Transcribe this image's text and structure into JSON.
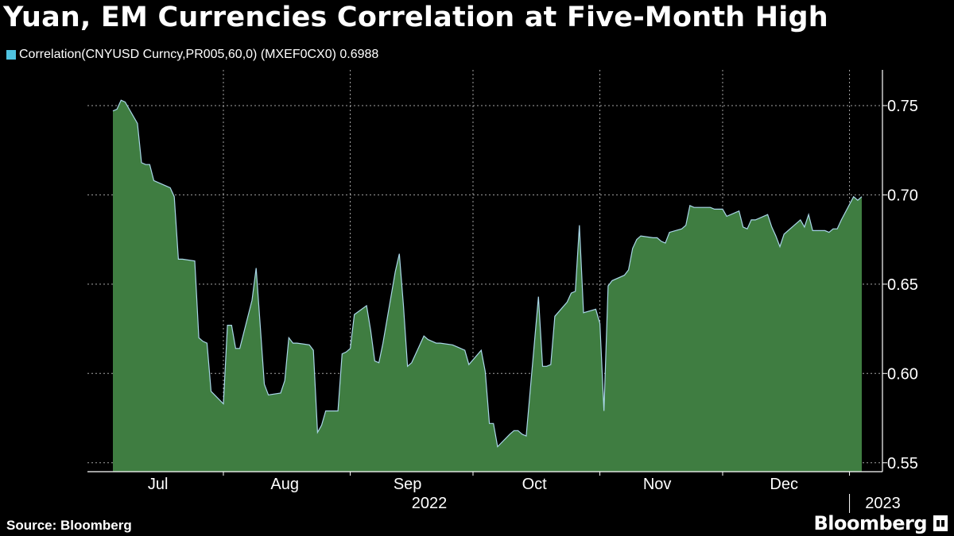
{
  "title": "Yuan, EM Currencies Correlation at Five-Month High",
  "legend": {
    "label": "Correlation(CNYUSD Curncy,PR005,60,0) (MXEF0CX0) 0.6988",
    "color": "#4fc3e0"
  },
  "source": "Source: Bloomberg",
  "brand": "Bloomberg",
  "colors": {
    "area_fill": "#3f7d41",
    "line": "#a9d6e8",
    "grid": "#cccccc",
    "axis": "#ffffff"
  },
  "chart_data": {
    "type": "area",
    "title": "Yuan, EM Currencies Correlation at Five-Month High",
    "xlabel": "",
    "ylabel": "",
    "ylim": [
      0.545,
      0.77
    ],
    "yticks": [
      "0.55",
      "0.60",
      "0.65",
      "0.70",
      "0.75"
    ],
    "xticks": [
      "Jul",
      "Aug",
      "Sep",
      "Oct",
      "Nov",
      "Dec"
    ],
    "year_labels": [
      "2022",
      "2023"
    ],
    "grid": true,
    "legend_position": "top-left",
    "series": [
      {
        "name": "Correlation(CNYUSD Curncy,PR005,60,0) (MXEF0CX0)",
        "x": [
          "2022-07-05",
          "2022-07-06",
          "2022-07-07",
          "2022-07-08",
          "2022-07-11",
          "2022-07-12",
          "2022-07-13",
          "2022-07-14",
          "2022-07-15",
          "2022-07-18",
          "2022-07-19",
          "2022-07-20",
          "2022-07-21",
          "2022-07-22",
          "2022-07-25",
          "2022-07-26",
          "2022-07-27",
          "2022-07-28",
          "2022-07-29",
          "2022-08-01",
          "2022-08-02",
          "2022-08-03",
          "2022-08-04",
          "2022-08-05",
          "2022-08-08",
          "2022-08-09",
          "2022-08-10",
          "2022-08-11",
          "2022-08-12",
          "2022-08-15",
          "2022-08-16",
          "2022-08-17",
          "2022-08-18",
          "2022-08-19",
          "2022-08-22",
          "2022-08-23",
          "2022-08-24",
          "2022-08-25",
          "2022-08-26",
          "2022-08-29",
          "2022-08-30",
          "2022-08-31",
          "2022-09-01",
          "2022-09-02",
          "2022-09-05",
          "2022-09-06",
          "2022-09-07",
          "2022-09-08",
          "2022-09-09",
          "2022-09-12",
          "2022-09-13",
          "2022-09-14",
          "2022-09-15",
          "2022-09-16",
          "2022-09-19",
          "2022-09-20",
          "2022-09-21",
          "2022-09-22",
          "2022-09-23",
          "2022-09-26",
          "2022-09-27",
          "2022-09-28",
          "2022-09-29",
          "2022-09-30",
          "2022-10-03",
          "2022-10-04",
          "2022-10-05",
          "2022-10-06",
          "2022-10-07",
          "2022-10-10",
          "2022-10-11",
          "2022-10-12",
          "2022-10-13",
          "2022-10-14",
          "2022-10-17",
          "2022-10-18",
          "2022-10-19",
          "2022-10-20",
          "2022-10-21",
          "2022-10-24",
          "2022-10-25",
          "2022-10-26",
          "2022-10-27",
          "2022-10-28",
          "2022-10-31",
          "2022-11-01",
          "2022-11-02",
          "2022-11-03",
          "2022-11-04",
          "2022-11-07",
          "2022-11-08",
          "2022-11-09",
          "2022-11-10",
          "2022-11-11",
          "2022-11-14",
          "2022-11-15",
          "2022-11-16",
          "2022-11-17",
          "2022-11-18",
          "2022-11-21",
          "2022-11-22",
          "2022-11-23",
          "2022-11-24",
          "2022-11-25",
          "2022-11-28",
          "2022-11-29",
          "2022-11-30",
          "2022-12-01",
          "2022-12-02",
          "2022-12-05",
          "2022-12-06",
          "2022-12-07",
          "2022-12-08",
          "2022-12-09",
          "2022-12-12",
          "2022-12-13",
          "2022-12-14",
          "2022-12-15",
          "2022-12-16",
          "2022-12-19",
          "2022-12-20",
          "2022-12-21",
          "2022-12-22",
          "2022-12-23",
          "2022-12-26",
          "2022-12-27",
          "2022-12-28",
          "2022-12-29",
          "2022-12-30",
          "2023-01-02",
          "2023-01-03",
          "2023-01-04"
        ],
        "values": [
          0.747,
          0.748,
          0.753,
          0.752,
          0.74,
          0.718,
          0.717,
          0.717,
          0.708,
          0.705,
          0.704,
          0.699,
          0.664,
          0.664,
          0.663,
          0.62,
          0.618,
          0.617,
          0.59,
          0.583,
          0.627,
          0.627,
          0.614,
          0.614,
          0.641,
          0.659,
          0.627,
          0.594,
          0.588,
          0.589,
          0.596,
          0.62,
          0.617,
          0.617,
          0.616,
          0.613,
          0.567,
          0.571,
          0.579,
          0.579,
          0.611,
          0.612,
          0.614,
          0.633,
          0.638,
          0.624,
          0.607,
          0.606,
          0.617,
          0.657,
          0.667,
          0.638,
          0.604,
          0.606,
          0.621,
          0.619,
          0.618,
          0.617,
          0.617,
          0.616,
          0.615,
          0.614,
          0.613,
          0.605,
          0.613,
          0.601,
          0.572,
          0.572,
          0.559,
          0.566,
          0.568,
          0.568,
          0.566,
          0.565,
          0.643,
          0.604,
          0.604,
          0.605,
          0.632,
          0.64,
          0.645,
          0.646,
          0.683,
          0.634,
          0.636,
          0.628,
          0.579,
          0.649,
          0.652,
          0.655,
          0.658,
          0.67,
          0.675,
          0.677,
          0.676,
          0.676,
          0.674,
          0.673,
          0.679,
          0.681,
          0.683,
          0.694,
          0.693,
          0.693,
          0.693,
          0.692,
          0.692,
          0.692,
          0.688,
          0.691,
          0.682,
          0.681,
          0.686,
          0.686,
          0.689,
          0.682,
          0.677,
          0.671,
          0.678,
          0.684,
          0.686,
          0.682,
          0.689,
          0.68,
          0.68,
          0.679,
          0.681,
          0.681,
          0.686,
          0.699,
          0.697,
          0.699
        ]
      }
    ]
  }
}
